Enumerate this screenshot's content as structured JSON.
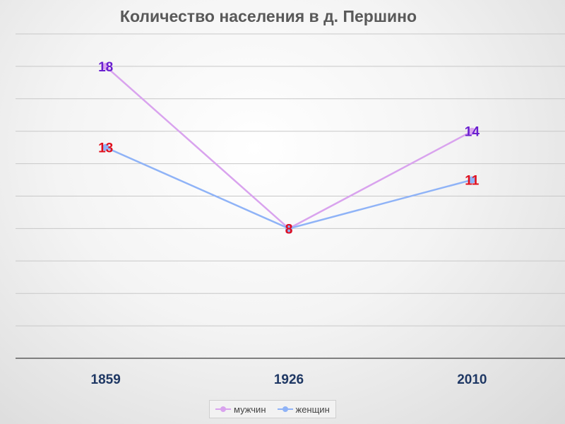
{
  "chart_data": {
    "type": "line",
    "title": "Количество населения в д. Першино",
    "categories": [
      "1859",
      "1926",
      "2010"
    ],
    "series": [
      {
        "name": "мужчин",
        "values": [
          18,
          8,
          14
        ],
        "color": "#d9a3ee",
        "label_color": "#6a1fd0"
      },
      {
        "name": "женщин",
        "values": [
          13,
          8,
          11
        ],
        "color": "#8fb3f7",
        "label_color": "#e0101e"
      }
    ],
    "ylim": [
      0,
      20
    ],
    "grid": true,
    "legend": "bottom"
  }
}
